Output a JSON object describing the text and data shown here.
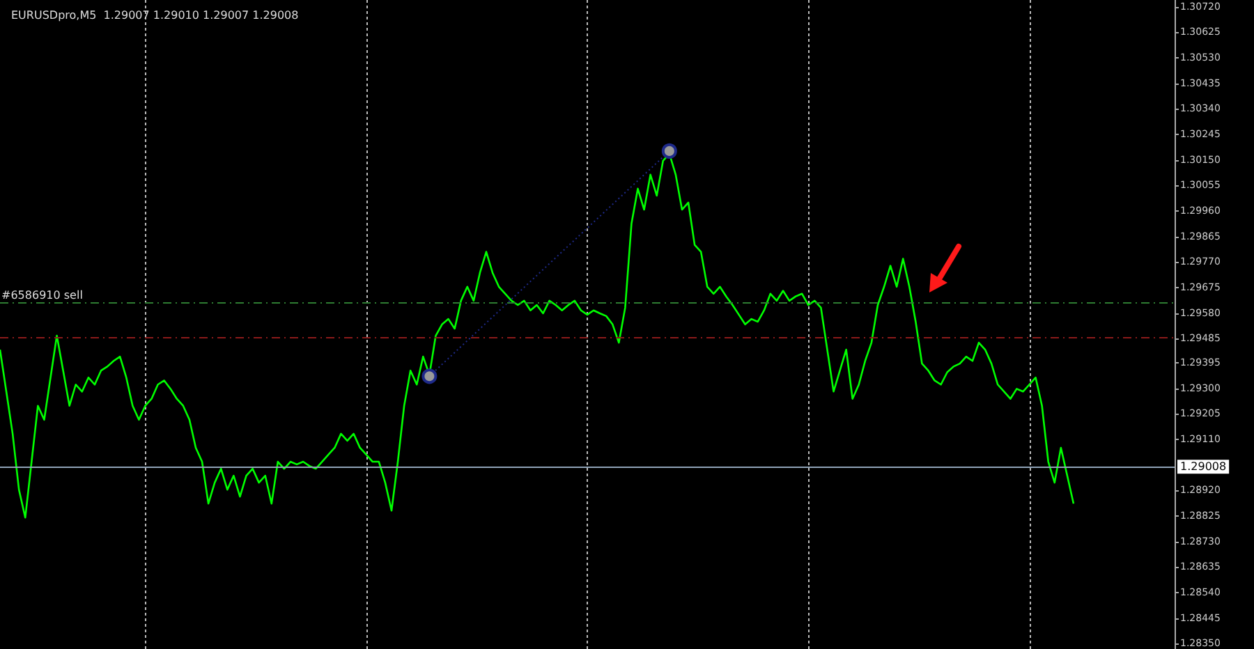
{
  "chart_data": {
    "type": "line",
    "title": "EURUSDpro,M5  1.29007 1.29010 1.29007 1.29008",
    "categories": [
      null,
      null,
      null,
      null,
      null,
      null,
      null,
      null,
      null,
      null,
      null,
      null,
      null,
      null,
      null,
      null,
      null,
      null,
      null,
      null,
      null,
      null,
      null,
      null,
      null,
      null,
      null,
      null,
      null,
      null,
      null,
      null,
      null,
      null,
      null,
      null,
      null,
      null,
      null,
      null,
      null,
      null,
      null,
      null,
      null,
      null,
      null,
      null,
      null,
      null,
      null,
      null,
      null,
      null,
      null,
      null,
      null,
      null,
      null,
      null,
      null,
      null,
      null,
      null,
      null,
      null,
      null,
      null,
      null,
      null,
      null,
      null,
      null,
      null,
      null,
      null,
      null,
      null,
      null,
      null,
      null,
      null,
      null,
      null,
      null,
      null,
      null,
      null,
      null,
      null,
      null,
      null,
      null,
      null,
      null,
      null,
      null,
      null,
      null,
      null,
      null,
      null,
      null,
      null,
      null,
      null,
      null,
      null,
      null,
      null,
      null,
      null,
      null,
      null,
      null,
      null,
      null,
      null,
      null,
      null,
      null,
      null,
      null,
      null,
      null,
      null,
      null,
      null,
      null,
      null,
      null,
      null,
      null,
      null,
      null,
      null,
      null,
      null,
      null,
      null,
      null,
      null,
      null,
      null,
      null,
      null,
      null,
      null,
      null,
      null,
      null,
      null,
      null,
      null,
      null,
      null,
      null,
      null,
      null,
      null,
      null,
      null,
      null,
      null,
      null,
      null,
      null,
      null,
      null,
      null,
      null,
      null,
      null,
      null,
      null,
      null,
      null,
      null,
      null,
      null,
      null,
      null,
      null,
      null,
      null,
      null,
      null
    ],
    "ylim": [
      1.2833,
      1.30745
    ],
    "yticks": [
      {
        "value": 1.3072,
        "label": "1.30720"
      },
      {
        "value": 1.30625,
        "label": "1.30625"
      },
      {
        "value": 1.3053,
        "label": "1.30530"
      },
      {
        "value": 1.30435,
        "label": "1.30435"
      },
      {
        "value": 1.3034,
        "label": "1.30340"
      },
      {
        "value": 1.30245,
        "label": "1.30245"
      },
      {
        "value": 1.3015,
        "label": "1.30150"
      },
      {
        "value": 1.30055,
        "label": "1.30055"
      },
      {
        "value": 1.2996,
        "label": "1.29960"
      },
      {
        "value": 1.29865,
        "label": "1.29865"
      },
      {
        "value": 1.2977,
        "label": "1.29770"
      },
      {
        "value": 1.29675,
        "label": "1.29675"
      },
      {
        "value": 1.2958,
        "label": "1.29580"
      },
      {
        "value": 1.29485,
        "label": "1.29485"
      },
      {
        "value": 1.29395,
        "label": "1.29395"
      },
      {
        "value": 1.293,
        "label": "1.29300"
      },
      {
        "value": 1.29205,
        "label": "1.29205"
      },
      {
        "value": 1.2911,
        "label": "1.29110"
      },
      {
        "value": 1.2892,
        "label": "1.28920"
      },
      {
        "value": 1.28825,
        "label": "1.28825"
      },
      {
        "value": 1.2873,
        "label": "1.28730"
      },
      {
        "value": 1.28635,
        "label": "1.28635"
      },
      {
        "value": 1.2854,
        "label": "1.28540"
      },
      {
        "value": 1.28445,
        "label": "1.28445"
      },
      {
        "value": 1.2835,
        "label": "1.28350"
      }
    ],
    "grid": "x",
    "tick_labels": "y",
    "series": [
      {
        "color": "#00ff00",
        "marker": "none",
        "line_style": "solid",
        "values": [
          1.29444,
          1.29288,
          1.29131,
          1.28923,
          1.28819,
          1.29027,
          1.29235,
          1.29183,
          1.2934,
          1.29496,
          1.29366,
          1.29235,
          1.29314,
          1.29288,
          1.2934,
          1.29314,
          1.29366,
          1.29381,
          1.29402,
          1.29418,
          1.2934,
          1.29235,
          1.29183,
          1.29235,
          1.29261,
          1.29314,
          1.29329,
          1.29298,
          1.29261,
          1.29235,
          1.29183,
          1.29079,
          1.29027,
          1.28871,
          1.28949,
          1.29001,
          1.28923,
          1.28975,
          1.28897,
          1.28975,
          1.29001,
          1.28949,
          1.28975,
          1.28871,
          1.29027,
          1.29001,
          1.29027,
          1.29017,
          1.29027,
          1.29011,
          1.29001,
          1.29027,
          1.29053,
          1.29079,
          1.29131,
          1.29105,
          1.29131,
          1.29079,
          1.29053,
          1.29027,
          1.29027,
          1.28949,
          1.28845,
          1.29027,
          1.29235,
          1.29366,
          1.29314,
          1.29418,
          1.2935,
          1.29496,
          1.29538,
          1.29558,
          1.29522,
          1.29626,
          1.29678,
          1.29626,
          1.2973,
          1.29808,
          1.2973,
          1.29678,
          1.29652,
          1.29626,
          1.2961,
          1.29626,
          1.2959,
          1.2961,
          1.29579,
          1.29626,
          1.2961,
          1.2959,
          1.2961,
          1.29626,
          1.2959,
          1.29574,
          1.2959,
          1.29579,
          1.29569,
          1.29538,
          1.2947,
          1.296,
          1.29913,
          1.30043,
          1.29965,
          1.30095,
          1.30017,
          1.30147,
          1.30173,
          1.30095,
          1.29965,
          1.29991,
          1.29834,
          1.29808,
          1.29678,
          1.29652,
          1.29678,
          1.29642,
          1.2961,
          1.29574,
          1.29538,
          1.29558,
          1.29548,
          1.2959,
          1.29652,
          1.29626,
          1.29663,
          1.29626,
          1.29642,
          1.29652,
          1.2961,
          1.29626,
          1.296,
          1.29444,
          1.29288,
          1.29366,
          1.29444,
          1.29261,
          1.29314,
          1.29402,
          1.2947,
          1.2961,
          1.29678,
          1.29756,
          1.29678,
          1.29782,
          1.29678,
          1.29548,
          1.29392,
          1.29366,
          1.29329,
          1.29314,
          1.2936,
          1.29381,
          1.29392,
          1.29418,
          1.29402,
          1.2947,
          1.29444,
          1.29392,
          1.29314,
          1.29288,
          1.29261,
          1.29298,
          1.29288,
          1.29314,
          1.2934,
          1.29235,
          1.29027,
          1.28949,
          1.29079,
          1.28975,
          1.28871,
          null,
          null,
          null,
          null,
          null,
          null,
          null,
          null,
          null,
          null,
          null,
          null,
          null,
          null,
          null,
          null
        ]
      },
      {
        "color": "#1e2a8a",
        "marker": "circle",
        "line_style": "dotted",
        "values": [
          null,
          null,
          null,
          null,
          null,
          null,
          null,
          null,
          null,
          null,
          null,
          null,
          null,
          null,
          null,
          null,
          null,
          null,
          null,
          null,
          null,
          null,
          null,
          null,
          null,
          null,
          null,
          null,
          null,
          null,
          null,
          null,
          null,
          null,
          null,
          null,
          null,
          null,
          null,
          null,
          null,
          null,
          null,
          null,
          null,
          null,
          null,
          null,
          null,
          null,
          null,
          null,
          null,
          null,
          null,
          null,
          null,
          null,
          null,
          null,
          null,
          null,
          null,
          null,
          null,
          null,
          null,
          null,
          1.29345,
          null,
          null,
          null,
          null,
          null,
          null,
          null,
          null,
          null,
          null,
          null,
          null,
          null,
          null,
          null,
          null,
          null,
          null,
          null,
          null,
          null,
          null,
          null,
          null,
          null,
          null,
          null,
          null,
          null,
          null,
          null,
          null,
          null,
          null,
          null,
          null,
          null,
          1.30183,
          null,
          null,
          null,
          null,
          null,
          null,
          null,
          null,
          null,
          null,
          null,
          null,
          null,
          null,
          null,
          null,
          null,
          null,
          null,
          null,
          null,
          null,
          null,
          null,
          null,
          null,
          null,
          null,
          null,
          null,
          null,
          null,
          null,
          null,
          null,
          null,
          null,
          null,
          null,
          null,
          null,
          null,
          null,
          null,
          null,
          null,
          null,
          null,
          null,
          null,
          null,
          null,
          null,
          null,
          null,
          null,
          null,
          null,
          null,
          null,
          null,
          null,
          null,
          null,
          null,
          null,
          null,
          null,
          null,
          null,
          null,
          null,
          null,
          null,
          null,
          null,
          null,
          null,
          null,
          null
        ]
      }
    ],
    "ref_lines": [
      {
        "axis": "y",
        "value": 1.29621,
        "label": "#6586910 sell",
        "color": "#2e7d32",
        "line_style": "dashed"
      },
      {
        "axis": "y",
        "value": 1.29491,
        "label": null,
        "color": "#8b1a1a",
        "line_style": "dashed"
      },
      {
        "axis": "y",
        "value": 1.29008,
        "label": "1.29008",
        "color": "#8fa3b8",
        "line_style": "solid"
      }
    ]
  }
}
